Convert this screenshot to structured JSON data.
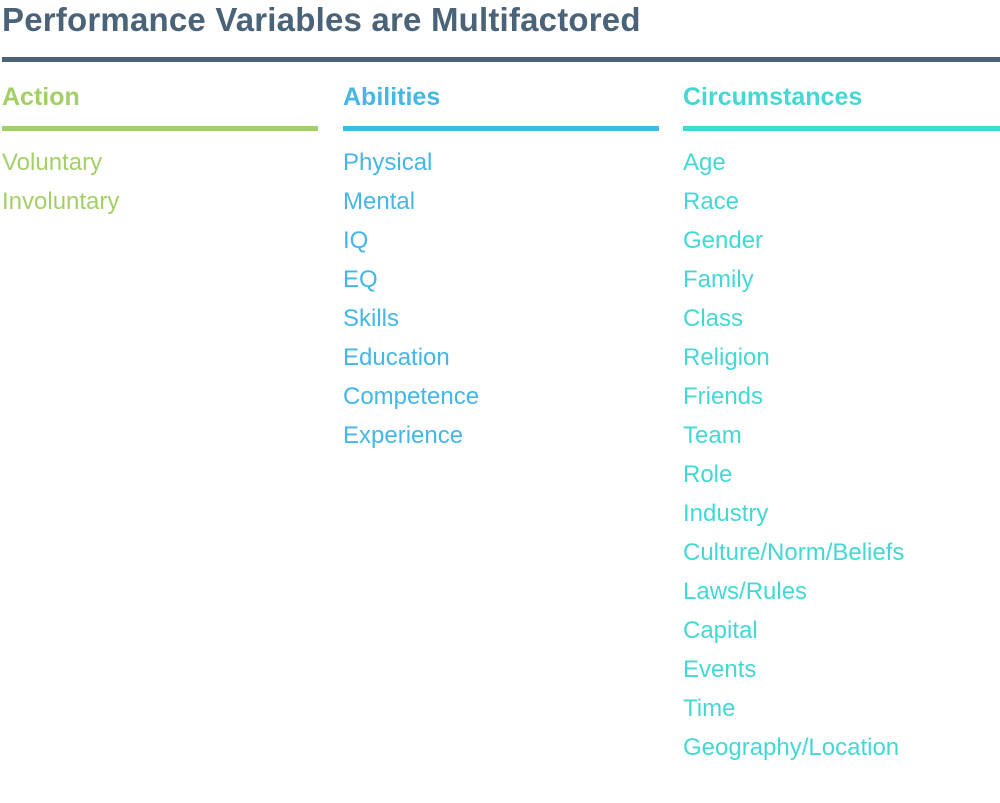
{
  "title": "Performance Variables are Multifactored",
  "colors": {
    "title": "#4a6378",
    "action": "#a3d066",
    "abilities": "#45b6e8",
    "circumstances": "#44d8d4"
  },
  "columns": [
    {
      "heading": "Action",
      "items": [
        "Voluntary",
        "Involuntary"
      ]
    },
    {
      "heading": "Abilities",
      "items": [
        "Physical",
        "Mental",
        "IQ",
        "EQ",
        "Skills",
        "Education",
        "Competence",
        "Experience"
      ]
    },
    {
      "heading": "Circumstances",
      "items": [
        "Age",
        "Race",
        "Gender",
        "Family",
        "Class",
        "Religion",
        "Friends",
        "Team",
        "Role",
        "Industry",
        "Culture/Norm/Beliefs",
        "Laws/Rules",
        "Capital",
        "Events",
        "Time",
        "Geography/Location"
      ]
    }
  ]
}
